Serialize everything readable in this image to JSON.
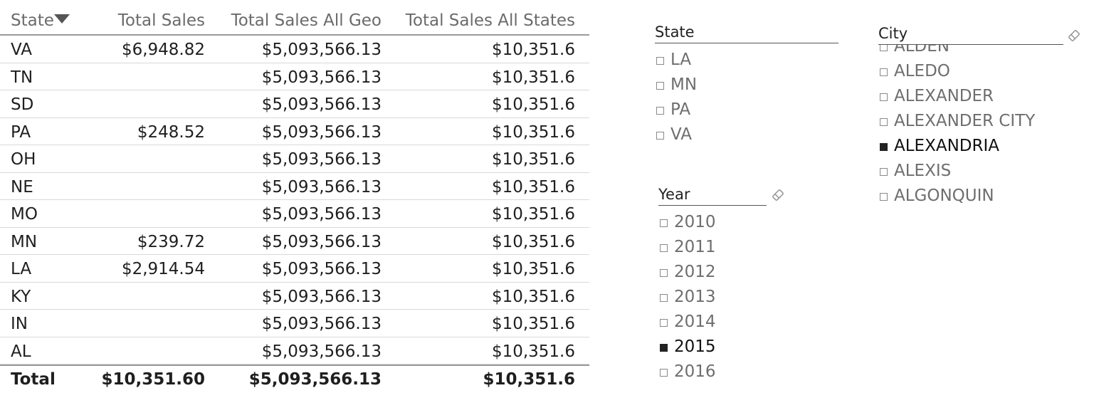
{
  "table": {
    "headers": [
      "State",
      "Total Sales",
      "Total Sales All Geo",
      "Total Sales All States"
    ],
    "rows": [
      [
        "VA",
        "$6,948.82",
        "$5,093,566.13",
        "$10,351.6"
      ],
      [
        "TN",
        "",
        "$5,093,566.13",
        "$10,351.6"
      ],
      [
        "SD",
        "",
        "$5,093,566.13",
        "$10,351.6"
      ],
      [
        "PA",
        "$248.52",
        "$5,093,566.13",
        "$10,351.6"
      ],
      [
        "OH",
        "",
        "$5,093,566.13",
        "$10,351.6"
      ],
      [
        "NE",
        "",
        "$5,093,566.13",
        "$10,351.6"
      ],
      [
        "MO",
        "",
        "$5,093,566.13",
        "$10,351.6"
      ],
      [
        "MN",
        "$239.72",
        "$5,093,566.13",
        "$10,351.6"
      ],
      [
        "LA",
        "$2,914.54",
        "$5,093,566.13",
        "$10,351.6"
      ],
      [
        "KY",
        "",
        "$5,093,566.13",
        "$10,351.6"
      ],
      [
        "IN",
        "",
        "$5,093,566.13",
        "$10,351.6"
      ],
      [
        "AL",
        "",
        "$5,093,566.13",
        "$10,351.6"
      ]
    ],
    "total": [
      "Total",
      "$10,351.60",
      "$5,093,566.13",
      "$10,351.6"
    ],
    "sort_icon": "sort-descending-icon"
  },
  "slicers": {
    "state": {
      "title": "State",
      "items": [
        {
          "label": "LA",
          "selected": false
        },
        {
          "label": "MN",
          "selected": false
        },
        {
          "label": "PA",
          "selected": false
        },
        {
          "label": "VA",
          "selected": false
        }
      ]
    },
    "year": {
      "title": "Year",
      "clear_icon": "eraser-icon",
      "items": [
        {
          "label": "2010",
          "selected": false
        },
        {
          "label": "2011",
          "selected": false
        },
        {
          "label": "2012",
          "selected": false
        },
        {
          "label": "2013",
          "selected": false
        },
        {
          "label": "2014",
          "selected": false
        },
        {
          "label": "2015",
          "selected": true
        },
        {
          "label": "2016",
          "selected": false
        }
      ]
    },
    "city": {
      "title": "City",
      "clear_icon": "eraser-icon",
      "items": [
        {
          "label": "ALDEN",
          "selected": false
        },
        {
          "label": "ALEDO",
          "selected": false
        },
        {
          "label": "ALEXANDER",
          "selected": false
        },
        {
          "label": "ALEXANDER CITY",
          "selected": false
        },
        {
          "label": "ALEXANDRIA",
          "selected": true
        },
        {
          "label": "ALEXIS",
          "selected": false
        },
        {
          "label": "ALGONQUIN",
          "selected": false
        }
      ]
    }
  }
}
